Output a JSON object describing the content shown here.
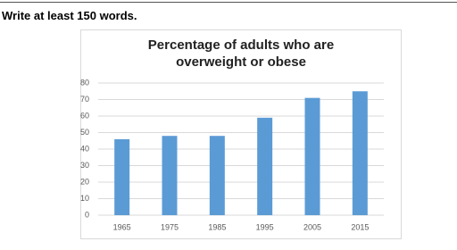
{
  "instruction": "Write at least 150 words.",
  "chart_data": {
    "type": "bar",
    "title": "Percentage of adults who are overweight or obese",
    "categories": [
      "1965",
      "1975",
      "1985",
      "1995",
      "2005",
      "2015"
    ],
    "values": [
      46,
      48,
      48,
      59,
      71,
      75
    ],
    "color": "#5b9bd5",
    "ylim": [
      0,
      80
    ],
    "yticks": [
      0,
      10,
      20,
      30,
      40,
      50,
      60,
      70,
      80
    ],
    "grid": true
  }
}
